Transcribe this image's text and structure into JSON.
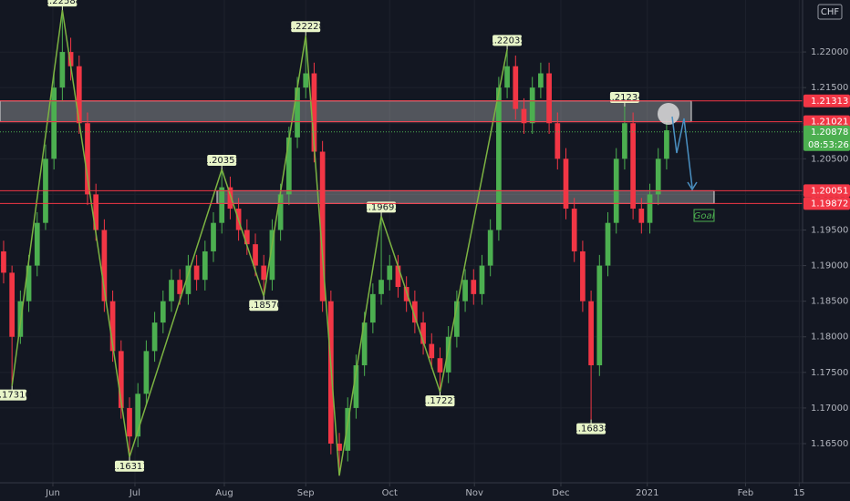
{
  "chart_data": {
    "type": "candlestick",
    "currency": "CHF",
    "countdown": "08:53:26",
    "goal": "Goal",
    "open": [
      1.192,
      1.189,
      1.18,
      1.185,
      1.19,
      1.196,
      1.205,
      1.215,
      1.22,
      1.218,
      1.21,
      1.2,
      1.195,
      1.185,
      1.178,
      1.17,
      1.166,
      1.172,
      1.178,
      1.182,
      1.185,
      1.188,
      1.186,
      1.19,
      1.188,
      1.192,
      1.196,
      1.201,
      1.198,
      1.195,
      1.193,
      1.19,
      1.188,
      1.195,
      1.2,
      1.208,
      1.215,
      1.217,
      1.206,
      1.185,
      1.165,
      1.164,
      1.17,
      1.176,
      1.182,
      1.186,
      1.188,
      1.19,
      1.187,
      1.185,
      1.182,
      1.179,
      1.177,
      1.175,
      1.18,
      1.185,
      1.188,
      1.186,
      1.19,
      1.195,
      1.215,
      1.218,
      1.212,
      1.21,
      1.215,
      1.217,
      1.21,
      1.205,
      1.198,
      1.192,
      1.185,
      1.176,
      1.19,
      1.196,
      1.205,
      1.21,
      1.198,
      1.196,
      1.2,
      1.205
    ],
    "high": [
      1.1935,
      1.19,
      1.1865,
      1.1915,
      1.1975,
      1.207,
      1.217,
      1.22588,
      1.222,
      1.2195,
      1.2115,
      1.2015,
      1.1965,
      1.1865,
      1.1795,
      1.1715,
      1.1735,
      1.1795,
      1.1835,
      1.1865,
      1.1895,
      1.1895,
      1.1915,
      1.1915,
      1.1935,
      1.1975,
      1.20351,
      1.2025,
      1.1995,
      1.1965,
      1.1945,
      1.1915,
      1.1965,
      1.2015,
      1.2095,
      1.2165,
      1.22228,
      1.2185,
      1.2075,
      1.1865,
      1.1665,
      1.1715,
      1.1775,
      1.1835,
      1.1875,
      1.19693,
      1.1915,
      1.1915,
      1.1885,
      1.1865,
      1.1835,
      1.1805,
      1.1785,
      1.1815,
      1.1865,
      1.1895,
      1.1895,
      1.1915,
      1.1965,
      1.2165,
      1.22035,
      1.2195,
      1.2135,
      1.2165,
      1.2185,
      1.2185,
      1.2115,
      1.2065,
      1.1995,
      1.1935,
      1.1865,
      1.1915,
      1.1975,
      1.2065,
      1.21234,
      1.2115,
      1.1995,
      1.2015,
      1.2065,
      1.2105
    ],
    "low": [
      1.1875,
      1.1731,
      1.179,
      1.1835,
      1.1885,
      1.195,
      1.2035,
      1.213,
      1.216,
      1.2085,
      1.1985,
      1.1935,
      1.1835,
      1.1765,
      1.1685,
      1.16311,
      1.1645,
      1.1705,
      1.1765,
      1.1805,
      1.1835,
      1.1845,
      1.1845,
      1.1865,
      1.1865,
      1.1905,
      1.1945,
      1.1965,
      1.1935,
      1.1915,
      1.1885,
      1.1857,
      1.1865,
      1.1935,
      1.1985,
      1.2065,
      1.2135,
      1.2045,
      1.1835,
      1.1635,
      1.1605,
      1.1625,
      1.1685,
      1.1745,
      1.1805,
      1.1845,
      1.1865,
      1.1855,
      1.1835,
      1.1805,
      1.1775,
      1.1755,
      1.17227,
      1.1735,
      1.1785,
      1.1835,
      1.1845,
      1.1845,
      1.1885,
      1.1935,
      1.2135,
      1.2105,
      1.2085,
      1.2085,
      1.2135,
      1.2085,
      1.2035,
      1.1965,
      1.1905,
      1.1835,
      1.16838,
      1.1745,
      1.1885,
      1.1945,
      1.2035,
      1.1965,
      1.1945,
      1.1945,
      1.1985,
      1.2035
    ],
    "close": [
      1.189,
      1.18,
      1.185,
      1.19,
      1.196,
      1.205,
      1.215,
      1.22,
      1.218,
      1.21,
      1.2,
      1.195,
      1.185,
      1.178,
      1.17,
      1.166,
      1.172,
      1.178,
      1.182,
      1.185,
      1.188,
      1.186,
      1.19,
      1.188,
      1.192,
      1.196,
      1.201,
      1.198,
      1.195,
      1.193,
      1.19,
      1.188,
      1.195,
      1.2,
      1.208,
      1.215,
      1.217,
      1.206,
      1.185,
      1.165,
      1.164,
      1.17,
      1.176,
      1.182,
      1.186,
      1.188,
      1.19,
      1.187,
      1.185,
      1.182,
      1.179,
      1.177,
      1.175,
      1.18,
      1.185,
      1.188,
      1.186,
      1.19,
      1.195,
      1.215,
      1.218,
      1.212,
      1.21,
      1.215,
      1.217,
      1.21,
      1.205,
      1.198,
      1.192,
      1.185,
      1.176,
      1.19,
      1.196,
      1.205,
      1.21,
      1.198,
      1.196,
      1.2,
      1.205,
      1.209
    ],
    "up_color": "#4caf50",
    "down_color": "#f23645",
    "pivots": [
      {
        "candle": 1,
        "side": "low",
        "label": "1.17310"
      },
      {
        "candle": 7,
        "side": "high",
        "label": "1.22588"
      },
      {
        "candle": 15,
        "side": "low",
        "label": "1.16311"
      },
      {
        "candle": 26,
        "side": "high",
        "label": "1.20351"
      },
      {
        "candle": 31,
        "side": "low",
        "label": "1.18570"
      },
      {
        "candle": 36,
        "side": "high",
        "label": "1.22228"
      },
      {
        "candle": 45,
        "side": "high",
        "label": "1.19693"
      },
      {
        "candle": 52,
        "side": "low",
        "label": "1.17227"
      },
      {
        "candle": 60,
        "side": "high",
        "label": "1.22035"
      },
      {
        "candle": 70,
        "side": "low",
        "label": "1.16838"
      },
      {
        "candle": 74,
        "side": "high",
        "label": "1.21234"
      }
    ],
    "zigzag_candles": [
      1,
      7,
      15,
      26,
      31,
      36,
      40,
      45,
      52,
      60
    ],
    "zigzag_color": "#7cb342",
    "levels": [
      {
        "value": 1.21313,
        "color": "#f23645"
      },
      {
        "value": 1.21021,
        "color": "#f23645"
      },
      {
        "value": 1.20051,
        "color": "#f23645"
      },
      {
        "value": 1.19872,
        "color": "#f23645"
      }
    ],
    "last_price": 1.20878,
    "last_color": "#4caf50",
    "xlim": [
      -0.43,
      95.2
    ],
    "xticks": [
      {
        "value": 5.87,
        "label": "Jun"
      },
      {
        "value": 15.65,
        "label": "Jul"
      },
      {
        "value": 26.3,
        "label": "Aug"
      },
      {
        "value": 36,
        "label": "Sep"
      },
      {
        "value": 46,
        "label": "Oct"
      },
      {
        "value": 56.1,
        "label": "Nov"
      },
      {
        "value": 66.4,
        "label": "Dec"
      },
      {
        "value": 76.7,
        "label": "2021"
      },
      {
        "value": 88.4,
        "label": "Feb"
      },
      {
        "value": 94.8,
        "label": "15"
      }
    ],
    "ylim": [
      1.1595,
      1.2273
    ],
    "yticks": [
      {
        "value": 1.165,
        "label": "1.16500"
      },
      {
        "value": 1.17,
        "label": "1.17000"
      },
      {
        "value": 1.175,
        "label": "1.17500"
      },
      {
        "value": 1.18,
        "label": "1.18000"
      },
      {
        "value": 1.185,
        "label": "1.18500"
      },
      {
        "value": 1.19,
        "label": "1.19000"
      },
      {
        "value": 1.195,
        "label": "1.19500"
      },
      {
        "value": 1.2,
        "label": "1.20000"
      },
      {
        "value": 1.205,
        "label": "1.20500"
      },
      {
        "value": 1.21,
        "label": "1.21000"
      },
      {
        "value": 1.215,
        "label": "1.21500"
      },
      {
        "value": 1.22,
        "label": "1.22000"
      }
    ]
  }
}
